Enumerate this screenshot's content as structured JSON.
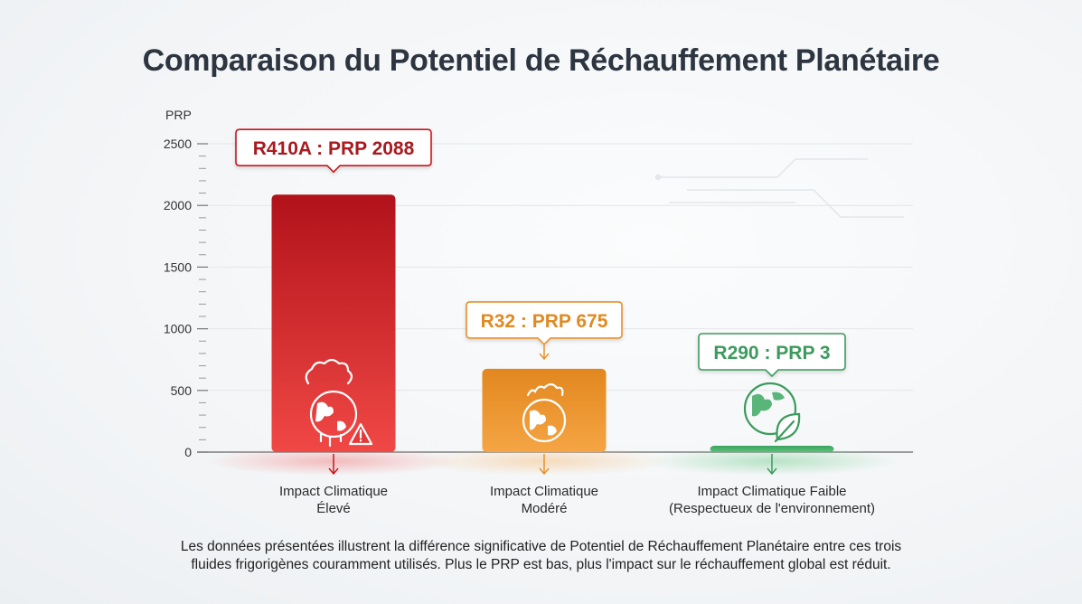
{
  "title": "Comparaison du Potentiel de Réchauffement Planétaire",
  "footnote": {
    "line1": "Les données présentées illustrent la différence significative de Potentiel de Réchauffement Planétaire entre ces trois",
    "line2": "fluides frigorigènes couramment utilisés. Plus le PRP est bas, plus l'impact sur le réchauffement global est réduit."
  },
  "colors": {
    "high": "#c8161e",
    "medium": "#e8902a",
    "low": "#3a9b5c",
    "axis": "#555555"
  },
  "chart_data": {
    "type": "bar",
    "ylabel": "PRP",
    "ylim": [
      0,
      2500
    ],
    "yticks": [
      0,
      500,
      1000,
      1500,
      2000,
      2500
    ],
    "grid": true,
    "categories": [
      "R410A",
      "R32",
      "R290"
    ],
    "values": [
      2088,
      675,
      3
    ],
    "callouts": [
      "R410A : PRP 2088",
      "R32 : PRP 675",
      "R290 : PRP 3"
    ],
    "category_labels": [
      [
        "Impact Climatique",
        "Élevé"
      ],
      [
        "Impact Climatique",
        "Modéré"
      ],
      [
        "Impact Climatique Faible",
        "(Respectueux de l'environnement)"
      ]
    ],
    "icons": [
      "melting-earth-warning-icon",
      "warming-earth-icon",
      "earth-leaf-icon"
    ]
  }
}
